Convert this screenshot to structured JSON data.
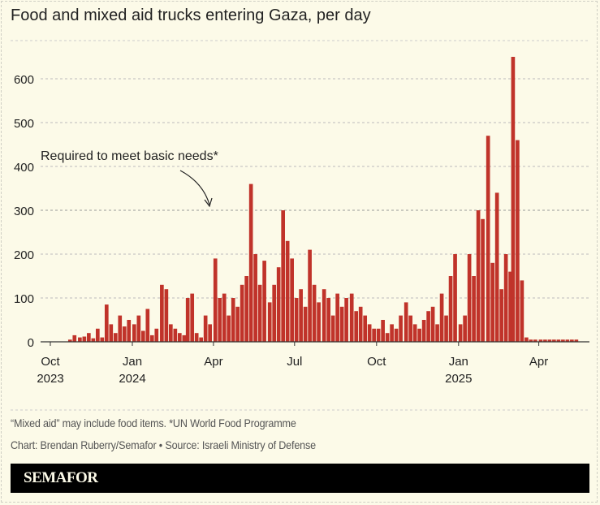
{
  "chart_data": {
    "type": "bar",
    "title": "Food and mixed aid trucks entering Gaza, per day",
    "xlabel": "",
    "ylabel": "",
    "ylim": [
      0,
      650
    ],
    "yticks": [
      0,
      100,
      200,
      300,
      400,
      500,
      600
    ],
    "xticks": [
      {
        "date": "2023-10-01",
        "label": "Oct",
        "sublabel": "2023"
      },
      {
        "date": "2024-01-01",
        "label": "Jan",
        "sublabel": "2024"
      },
      {
        "date": "2024-04-01",
        "label": "Apr",
        "sublabel": ""
      },
      {
        "date": "2024-07-01",
        "label": "Jul",
        "sublabel": ""
      },
      {
        "date": "2024-10-01",
        "label": "Oct",
        "sublabel": ""
      },
      {
        "date": "2025-01-01",
        "label": "Jan",
        "sublabel": "2025"
      },
      {
        "date": "2025-04-01",
        "label": "Apr",
        "sublabel": ""
      }
    ],
    "grid": true,
    "bar_color": "#c0332a",
    "reference_line": {
      "value": 300,
      "label": "Required to meet basic needs*"
    },
    "dates": [
      "2023-10-21",
      "2023-10-26",
      "2023-11-01",
      "2023-11-06",
      "2023-11-11",
      "2023-11-16",
      "2023-11-21",
      "2023-11-26",
      "2023-12-01",
      "2023-12-06",
      "2023-12-11",
      "2023-12-16",
      "2023-12-21",
      "2023-12-26",
      "2024-01-01",
      "2024-01-06",
      "2024-01-11",
      "2024-01-16",
      "2024-01-21",
      "2024-01-26",
      "2024-02-01",
      "2024-02-06",
      "2024-02-11",
      "2024-02-16",
      "2024-02-21",
      "2024-02-26",
      "2024-03-01",
      "2024-03-06",
      "2024-03-11",
      "2024-03-16",
      "2024-03-21",
      "2024-03-26",
      "2024-04-01",
      "2024-04-06",
      "2024-04-11",
      "2024-04-16",
      "2024-04-21",
      "2024-04-26",
      "2024-05-01",
      "2024-05-06",
      "2024-05-11",
      "2024-05-16",
      "2024-05-21",
      "2024-05-26",
      "2024-06-01",
      "2024-06-06",
      "2024-06-11",
      "2024-06-16",
      "2024-06-21",
      "2024-06-26",
      "2024-07-01",
      "2024-07-06",
      "2024-07-11",
      "2024-07-16",
      "2024-07-21",
      "2024-07-26",
      "2024-08-01",
      "2024-08-06",
      "2024-08-11",
      "2024-08-16",
      "2024-08-21",
      "2024-08-26",
      "2024-09-01",
      "2024-09-06",
      "2024-09-11",
      "2024-09-16",
      "2024-09-21",
      "2024-09-26",
      "2024-10-01",
      "2024-10-06",
      "2024-10-11",
      "2024-10-16",
      "2024-10-21",
      "2024-10-26",
      "2024-11-01",
      "2024-11-06",
      "2024-11-11",
      "2024-11-16",
      "2024-11-21",
      "2024-11-26",
      "2024-12-01",
      "2024-12-06",
      "2024-12-11",
      "2024-12-16",
      "2024-12-21",
      "2024-12-26",
      "2025-01-01",
      "2025-01-06",
      "2025-01-11",
      "2025-01-16",
      "2025-01-21",
      "2025-01-26",
      "2025-02-01",
      "2025-02-06",
      "2025-02-11",
      "2025-02-16",
      "2025-02-21",
      "2025-02-26",
      "2025-03-01",
      "2025-03-06",
      "2025-03-11",
      "2025-03-16",
      "2025-03-21",
      "2025-03-26",
      "2025-04-01",
      "2025-04-06",
      "2025-04-11",
      "2025-04-16",
      "2025-04-21",
      "2025-04-26",
      "2025-05-01",
      "2025-05-06",
      "2025-05-11"
    ],
    "values": [
      5,
      15,
      10,
      12,
      20,
      8,
      30,
      10,
      85,
      40,
      20,
      60,
      35,
      50,
      40,
      60,
      25,
      75,
      15,
      30,
      130,
      120,
      40,
      30,
      20,
      15,
      100,
      110,
      20,
      10,
      60,
      40,
      190,
      100,
      110,
      60,
      100,
      80,
      130,
      150,
      360,
      200,
      130,
      185,
      90,
      130,
      170,
      300,
      230,
      190,
      100,
      120,
      80,
      210,
      130,
      90,
      120,
      100,
      60,
      110,
      80,
      100,
      110,
      70,
      80,
      60,
      40,
      30,
      30,
      50,
      20,
      40,
      30,
      60,
      90,
      60,
      40,
      30,
      50,
      70,
      80,
      40,
      110,
      60,
      150,
      200,
      40,
      60,
      200,
      150,
      300,
      280,
      470,
      180,
      340,
      120,
      200,
      160,
      650,
      460,
      140,
      10,
      5,
      5,
      5,
      5,
      5,
      5,
      5,
      5,
      5,
      5,
      5
    ]
  },
  "notes": {
    "footnote": "“Mixed aid” may include food items. *UN World Food Programme",
    "credit": "Chart: Brendan Ruberry/Semafor • Source: Israeli Ministry of Defense"
  },
  "brand": {
    "logo": "SEMAFOR"
  }
}
